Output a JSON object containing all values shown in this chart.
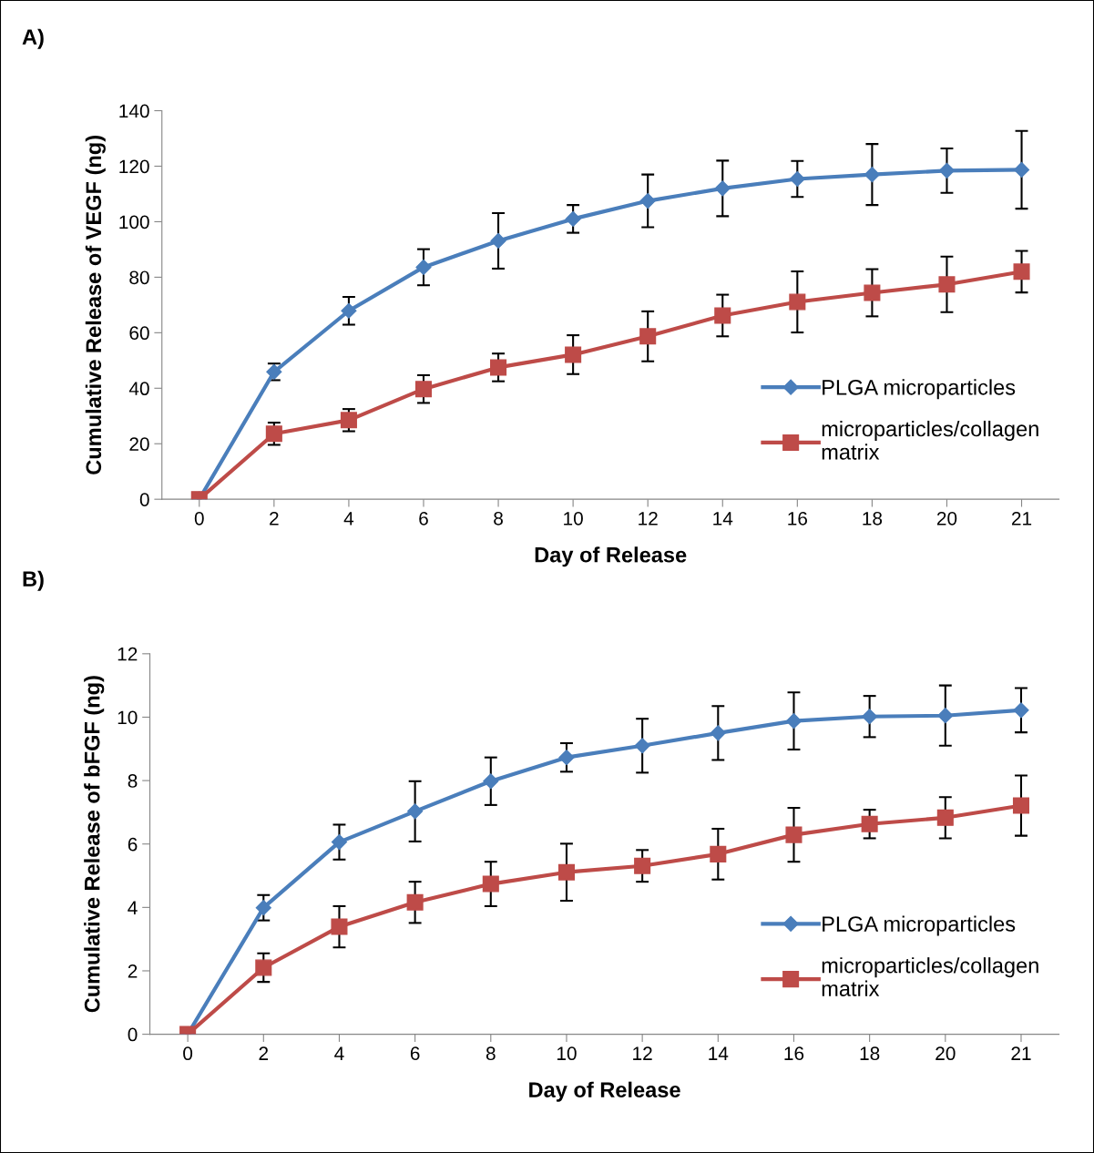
{
  "chart_data": [
    {
      "type": "line",
      "xlabel": "Day of Release",
      "ylabel": "Cumulative Release of VEGF (ng)",
      "annotations": [
        "A)"
      ],
      "categories": [
        "0",
        "2",
        "4",
        "6",
        "8",
        "10",
        "12",
        "14",
        "16",
        "18",
        "20",
        "21"
      ],
      "ylim": [
        0,
        140
      ],
      "yticks": [
        0,
        20,
        40,
        60,
        80,
        100,
        120,
        140
      ],
      "grid": false,
      "legend": "right",
      "line_style": "solid",
      "series": [
        {
          "name": "PLGA microparticles",
          "color": "#4a7ebb",
          "marker": "diamond",
          "values": [
            0,
            45.9,
            67.9,
            83.6,
            93.1,
            101,
            107.5,
            112,
            115.4,
            117,
            118.4,
            118.7
          ],
          "errors": [
            null,
            3,
            5,
            6.5,
            10,
            5,
            9.5,
            10,
            6.5,
            11,
            8,
            14
          ]
        },
        {
          "name": "microparticles/collagen matrix",
          "color": "#be4b48",
          "marker": "square",
          "values": [
            0,
            23.6,
            28.5,
            39.7,
            47.5,
            52.1,
            58.7,
            66.2,
            71.1,
            74.4,
            77.4,
            82
          ],
          "errors": [
            null,
            4,
            4,
            5,
            5,
            7,
            9,
            7.5,
            11,
            8.5,
            10,
            7.5
          ]
        }
      ]
    },
    {
      "type": "line",
      "xlabel": "Day of Release",
      "ylabel": "Cumulative Release of bFGF (ng)",
      "annotations": [
        "B)"
      ],
      "categories": [
        "0",
        "2",
        "4",
        "6",
        "8",
        "10",
        "12",
        "14",
        "16",
        "18",
        "20",
        "21"
      ],
      "ylim": [
        0,
        12
      ],
      "yticks": [
        0,
        2,
        4,
        6,
        8,
        10,
        12
      ],
      "grid": false,
      "legend": "right",
      "line_style": "solid",
      "series": [
        {
          "name": "PLGA microparticles",
          "color": "#4a7ebb",
          "marker": "diamond",
          "values": [
            0,
            3.99,
            6.06,
            7.03,
            7.98,
            8.73,
            9.1,
            9.5,
            9.88,
            10.02,
            10.05,
            10.22
          ],
          "errors": [
            null,
            0.4,
            0.55,
            0.95,
            0.75,
            0.45,
            0.85,
            0.85,
            0.9,
            0.65,
            0.95,
            0.7
          ]
        },
        {
          "name": "microparticles/collagen matrix",
          "color": "#be4b48",
          "marker": "square",
          "values": [
            0,
            2.1,
            3.39,
            4.16,
            4.74,
            5.11,
            5.31,
            5.68,
            6.29,
            6.63,
            6.83,
            7.21
          ],
          "errors": [
            null,
            0.45,
            0.65,
            0.65,
            0.7,
            0.9,
            0.5,
            0.8,
            0.85,
            0.45,
            0.65,
            0.95
          ]
        }
      ]
    }
  ]
}
